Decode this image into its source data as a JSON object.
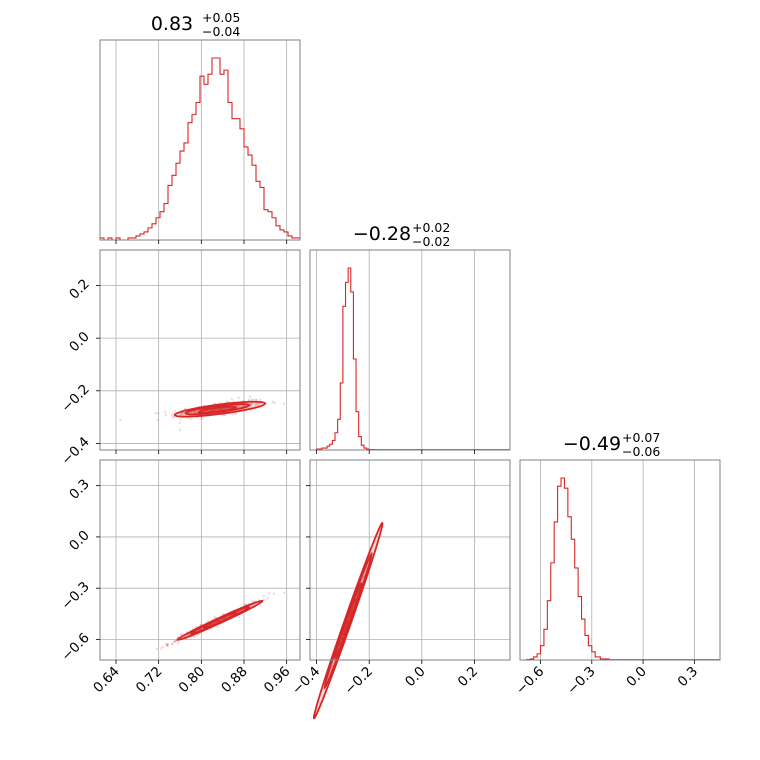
{
  "chart_data": {
    "type": "corner",
    "color": "#d62728",
    "titles": [
      {
        "value": "0.83",
        "plus": "+0.05",
        "minus": "−0.04"
      },
      {
        "value": "−0.28",
        "plus": "+0.02",
        "minus": "−0.02"
      },
      {
        "value": "−0.49",
        "plus": "+0.07",
        "minus": "−0.06"
      }
    ],
    "axes": [
      {
        "range": [
          0.61,
          0.985
        ],
        "ticks": [
          0.64,
          0.72,
          0.8,
          0.88,
          0.96
        ],
        "tick_labels": [
          "0.64",
          "0.72",
          "0.80",
          "0.88",
          "0.96"
        ]
      },
      {
        "range": [
          -0.425,
          0.335
        ],
        "ticks": [
          -0.4,
          -0.2,
          0.0,
          0.2
        ],
        "tick_labels": [
          "−0.4",
          "−0.2",
          "0.0",
          "0.2"
        ],
        "x_ticks": [
          -0.4,
          -0.2,
          0.0,
          0.2
        ],
        "x_tick_labels": [
          "−0.4",
          "−0.2",
          "0.0",
          "0.2"
        ]
      },
      {
        "range": [
          -0.72,
          0.45
        ],
        "ticks": [
          -0.6,
          -0.3,
          0.0,
          0.3
        ],
        "tick_labels": [
          "−0.6",
          "−0.3",
          "0.0",
          "0.3"
        ]
      }
    ],
    "hist_x": {
      "edges": [
        0.61,
        0.6175,
        0.625,
        0.6325,
        0.64,
        0.6475,
        0.655,
        0.6625,
        0.67,
        0.6775,
        0.685,
        0.6925,
        0.7,
        0.7075,
        0.715,
        0.7225,
        0.73,
        0.7375,
        0.745,
        0.7525,
        0.76,
        0.7675,
        0.775,
        0.7825,
        0.79,
        0.7975,
        0.805,
        0.8125,
        0.82,
        0.8275,
        0.835,
        0.8425,
        0.85,
        0.8575,
        0.865,
        0.8725,
        0.88,
        0.8875,
        0.895,
        0.9025,
        0.91,
        0.9175,
        0.925,
        0.9325,
        0.94,
        0.9475,
        0.955,
        0.9625,
        0.97,
        0.9775,
        0.985
      ],
      "counts": [
        1,
        0,
        1,
        0,
        1,
        0,
        0,
        1,
        1,
        2,
        3,
        4,
        6,
        8,
        11,
        14,
        18,
        27,
        32,
        38,
        44,
        48,
        58,
        62,
        68,
        81,
        77,
        82,
        90,
        90,
        82,
        84,
        68,
        60,
        60,
        55,
        46,
        42,
        37,
        29,
        26,
        15,
        14,
        11,
        7,
        5,
        4,
        2,
        1,
        1
      ]
    },
    "hist_y": {
      "edges": [
        -0.42,
        -0.4,
        -0.38,
        -0.36,
        -0.35,
        -0.34,
        -0.33,
        -0.32,
        -0.31,
        -0.3,
        -0.29,
        -0.28,
        -0.27,
        -0.26,
        -0.25,
        -0.24,
        -0.23,
        -0.22,
        -0.21,
        -0.2,
        -0.18,
        0.0,
        0.33
      ],
      "counts": [
        0,
        1,
        2,
        4,
        6,
        10,
        18,
        32,
        70,
        150,
        175,
        190,
        165,
        95,
        40,
        14,
        5,
        2,
        1,
        0.5,
        0.3,
        0.3
      ]
    },
    "hist_z": {
      "edges": [
        -0.71,
        -0.68,
        -0.66,
        -0.64,
        -0.62,
        -0.6,
        -0.58,
        -0.56,
        -0.54,
        -0.52,
        -0.5,
        -0.48,
        -0.46,
        -0.44,
        -0.42,
        -0.4,
        -0.38,
        -0.36,
        -0.34,
        -0.32,
        -0.3,
        -0.28,
        -0.25,
        -0.2,
        0.45
      ],
      "counts": [
        0,
        0.5,
        1,
        3,
        6,
        14,
        30,
        58,
        95,
        135,
        170,
        178,
        168,
        140,
        118,
        90,
        62,
        40,
        24,
        14,
        8,
        3,
        1,
        0.3
      ]
    },
    "joint_xy": {
      "slope": 0.26,
      "intercept": -0.487,
      "sigma_x": 0.045,
      "sigma_perp": 0.014,
      "contours": [
        {
          "cx": 0.835,
          "cy": -0.27,
          "rx": 0.085,
          "ry": 0.018
        },
        {
          "cx": 0.83,
          "cy": -0.27,
          "rx": 0.06,
          "ry": 0.012
        },
        {
          "cx": 0.83,
          "cy": -0.272,
          "rx": 0.035,
          "ry": 0.007
        }
      ]
    },
    "joint_xz": {
      "slope": 1.43,
      "intercept": -1.68,
      "sigma_x": 0.045,
      "sigma_perp": 0.012,
      "contours": [
        {
          "cx": 0.835,
          "cy": -0.488,
          "rx": 0.08,
          "ry": 0.015
        },
        {
          "cx": 0.835,
          "cy": -0.488,
          "rx": 0.055,
          "ry": 0.009
        },
        {
          "cx": 0.835,
          "cy": -0.488,
          "rx": 0.03,
          "ry": 0.005
        }
      ]
    },
    "joint_yz": {
      "slope": 4.4,
      "intercept": 0.74,
      "sigma_x": 0.02,
      "sigma_perp": 0.02,
      "contours": [
        {
          "cx": -0.28,
          "cy": -0.49,
          "rx": 0.13,
          "ry": 0.02
        },
        {
          "cx": -0.28,
          "cy": -0.49,
          "rx": 0.09,
          "ry": 0.014
        },
        {
          "cx": -0.28,
          "cy": -0.49,
          "rx": 0.05,
          "ry": 0.008
        }
      ]
    }
  }
}
